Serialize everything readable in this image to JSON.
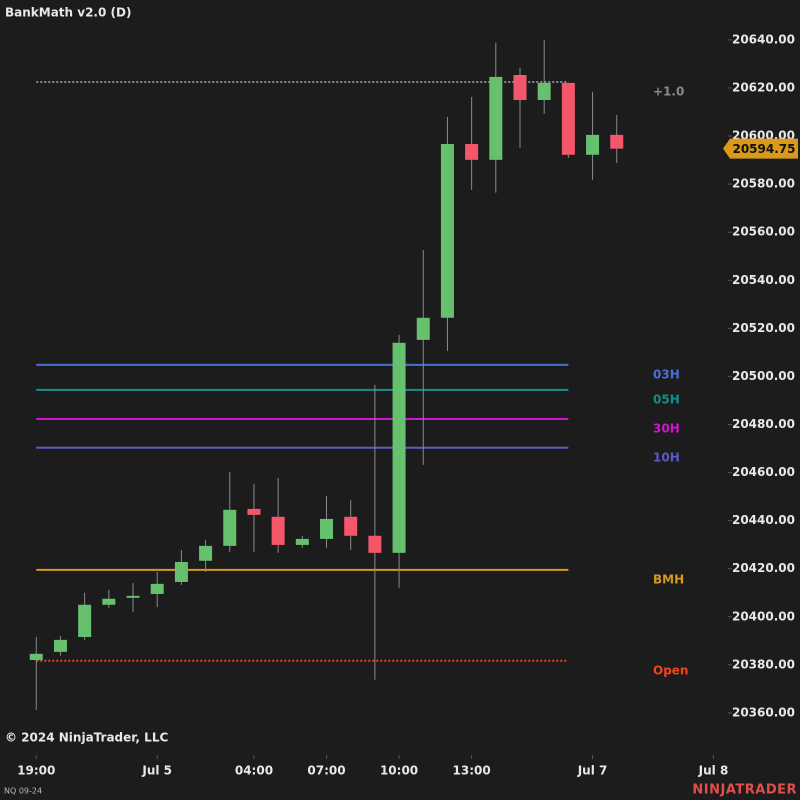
{
  "chart_data": {
    "type": "candlestick",
    "title": "BankMath v2.0 (D)",
    "copyright": "© 2024 NinjaTrader, LLC",
    "instrument": "NQ 09-24",
    "brand": "NINJATRADER",
    "x": [
      0,
      1,
      2,
      3,
      4,
      5,
      6,
      7,
      8,
      9,
      10,
      11,
      12,
      13,
      14,
      15,
      16,
      17,
      18,
      19,
      20,
      21,
      22,
      23,
      24
    ],
    "open": [
      20382.0,
      20385.4,
      20391.6,
      20405.0,
      20407.9,
      20409.5,
      20414.5,
      20423.3,
      20429.5,
      20444.9,
      20441.6,
      20429.9,
      20432.4,
      20441.6,
      20433.7,
      20426.6,
      20515.2,
      20524.4,
      20596.7,
      20590.1,
      20625.4,
      20615.0,
      20622.1,
      20592.2,
      20600.5
    ],
    "high": [
      20391.6,
      20392.0,
      20410.0,
      20411.2,
      20414.0,
      20418.7,
      20427.8,
      20432.0,
      20460.3,
      20455.3,
      20457.8,
      20433.7,
      20450.3,
      20448.6,
      20496.5,
      20517.3,
      20552.6,
      20608.0,
      20616.3,
      20638.8,
      20628.4,
      20640.0,
      20622.1,
      20618.4,
      20608.8
    ],
    "low": [
      20361.3,
      20383.8,
      20390.4,
      20403.7,
      20402.0,
      20404.0,
      20413.3,
      20418.7,
      20427.0,
      20427.0,
      20426.6,
      20428.7,
      20428.7,
      20427.8,
      20373.8,
      20412.0,
      20463.2,
      20510.6,
      20577.6,
      20576.4,
      20595.1,
      20609.2,
      20590.9,
      20581.8,
      20588.8
    ],
    "close": [
      20384.6,
      20390.4,
      20405.0,
      20407.5,
      20408.7,
      20413.7,
      20422.8,
      20429.5,
      20444.5,
      20442.4,
      20429.9,
      20432.4,
      20440.7,
      20433.7,
      20426.6,
      20514.0,
      20524.4,
      20596.7,
      20590.1,
      20624.6,
      20615.0,
      20622.1,
      20592.2,
      20600.5,
      20594.75
    ],
    "up_color": "#66c06e",
    "down_color": "#f4566a",
    "wick_color": "#8a8a8a",
    "last_price": 20594.75,
    "last_price_color": "#d89a18",
    "levels": [
      {
        "name": "+1.0",
        "value": 20622.5,
        "color": "#8a8a8a",
        "style": "dotted"
      },
      {
        "name": "03H",
        "value": 20504.8,
        "color": "#4a6fd8",
        "style": "solid"
      },
      {
        "name": "05H",
        "value": 20494.4,
        "color": "#13908c",
        "style": "solid"
      },
      {
        "name": "30H",
        "value": 20482.3,
        "color": "#d016d0",
        "style": "solid"
      },
      {
        "name": "10H",
        "value": 20470.3,
        "color": "#5a5ac8",
        "style": "solid"
      },
      {
        "name": "BMH",
        "value": 20419.5,
        "color": "#d39a1c",
        "style": "solid"
      },
      {
        "name": "Open",
        "value": 20381.7,
        "color": "#f0451e",
        "style": "dotted"
      }
    ],
    "xlim": [
      -1.5,
      28.6
    ],
    "xticks": [
      {
        "value": 0,
        "label": "19:00"
      },
      {
        "value": 5,
        "label": "Jul 5"
      },
      {
        "value": 9,
        "label": "04:00"
      },
      {
        "value": 12,
        "label": "07:00"
      },
      {
        "value": 15,
        "label": "10:00"
      },
      {
        "value": 18,
        "label": "13:00"
      },
      {
        "value": 23,
        "label": "Jul 7"
      },
      {
        "value": 28,
        "label": "Jul 8"
      }
    ],
    "ylim": [
      20342.5,
      20656.6
    ],
    "yticks": [
      {
        "value": 20360,
        "label": "20360.00"
      },
      {
        "value": 20380,
        "label": "20380.00"
      },
      {
        "value": 20400,
        "label": "20400.00"
      },
      {
        "value": 20420,
        "label": "20420.00"
      },
      {
        "value": 20440,
        "label": "20440.00"
      },
      {
        "value": 20460,
        "label": "20460.00"
      },
      {
        "value": 20480,
        "label": "20480.00"
      },
      {
        "value": 20500,
        "label": "20500.00"
      },
      {
        "value": 20520,
        "label": "20520.00"
      },
      {
        "value": 20540,
        "label": "20540.00"
      },
      {
        "value": 20560,
        "label": "20560.00"
      },
      {
        "value": 20580,
        "label": "20580.00"
      },
      {
        "value": 20600,
        "label": "20600.00"
      },
      {
        "value": 20620,
        "label": "20620.00"
      },
      {
        "value": 20640,
        "label": "20640.00"
      }
    ]
  }
}
